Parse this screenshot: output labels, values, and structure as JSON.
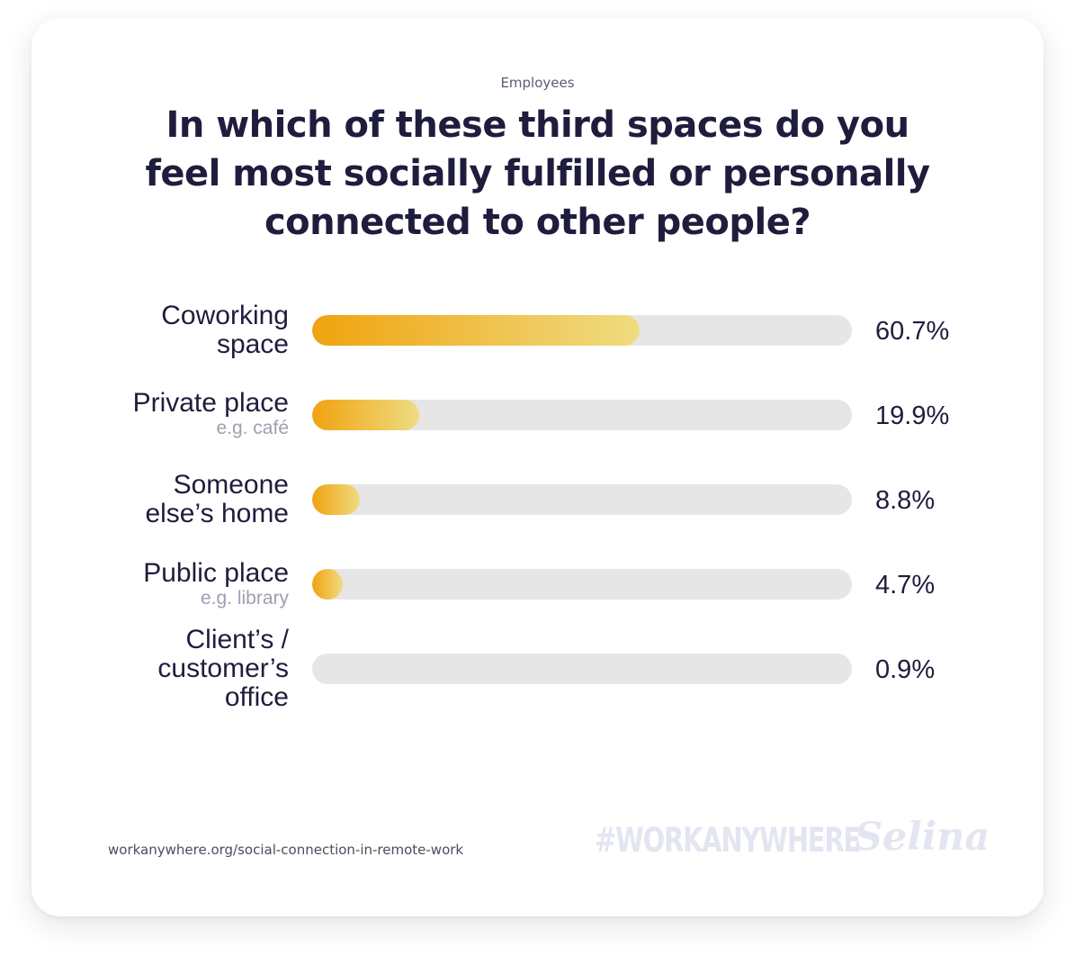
{
  "subtitle": "Employees",
  "title_lines": [
    "In which of these third spaces do you",
    "feel most socially fulfilled or personally",
    "connected to other people?"
  ],
  "chart_data": {
    "type": "bar",
    "orientation": "horizontal",
    "xlim": [
      0,
      100
    ],
    "categories": [
      {
        "lines": [
          "Coworking",
          "space"
        ],
        "note": ""
      },
      {
        "lines": [
          "Private place"
        ],
        "note": "e.g. café"
      },
      {
        "lines": [
          "Someone",
          "else’s home"
        ],
        "note": ""
      },
      {
        "lines": [
          "Public place"
        ],
        "note": "e.g. library"
      },
      {
        "lines": [
          "Client’s /",
          "customer’s",
          "office"
        ],
        "note": ""
      }
    ],
    "values": [
      60.7,
      19.9,
      8.8,
      4.7,
      0.9
    ],
    "value_labels": [
      "60.7%",
      "19.9%",
      "8.8%",
      "4.7%",
      "0.9%"
    ],
    "colors": {
      "fill_start": "#f0a30f",
      "fill_end": "#efdc82",
      "track": "#e6e6e6"
    }
  },
  "footer": {
    "source": "workanywhere.org/social-connection-in-remote-work",
    "hashtag": "#WORKANYWHERE",
    "brand": "Selina"
  }
}
